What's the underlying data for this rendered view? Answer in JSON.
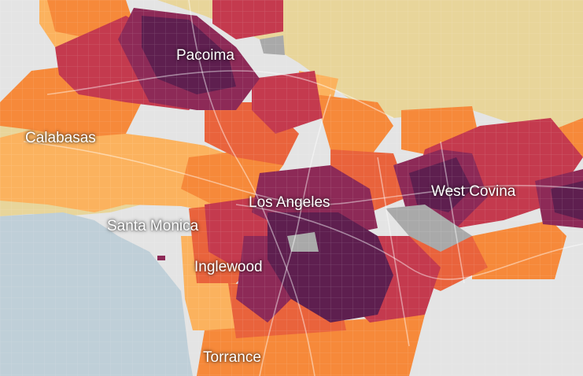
{
  "map": {
    "places": [
      {
        "name": "Pacoima"
      },
      {
        "name": "Calabasas"
      },
      {
        "name": "Los Angeles"
      },
      {
        "name": "West Covina"
      },
      {
        "name": "Santa Monica"
      },
      {
        "name": "Inglewood"
      },
      {
        "name": "Torrance"
      }
    ],
    "palette": {
      "ocean": "#bfcfd8",
      "land": "#e4e4e4",
      "mountains": "#e8d59a",
      "light_orange": "#fbb25e",
      "orange": "#f6893a",
      "dark_orange": "#e9633c",
      "red": "#c43a4e",
      "dark_red": "#8d2a57",
      "purple": "#5e1f4f",
      "no_data": "#a9a9a9",
      "roads": "#ffffff"
    }
  }
}
